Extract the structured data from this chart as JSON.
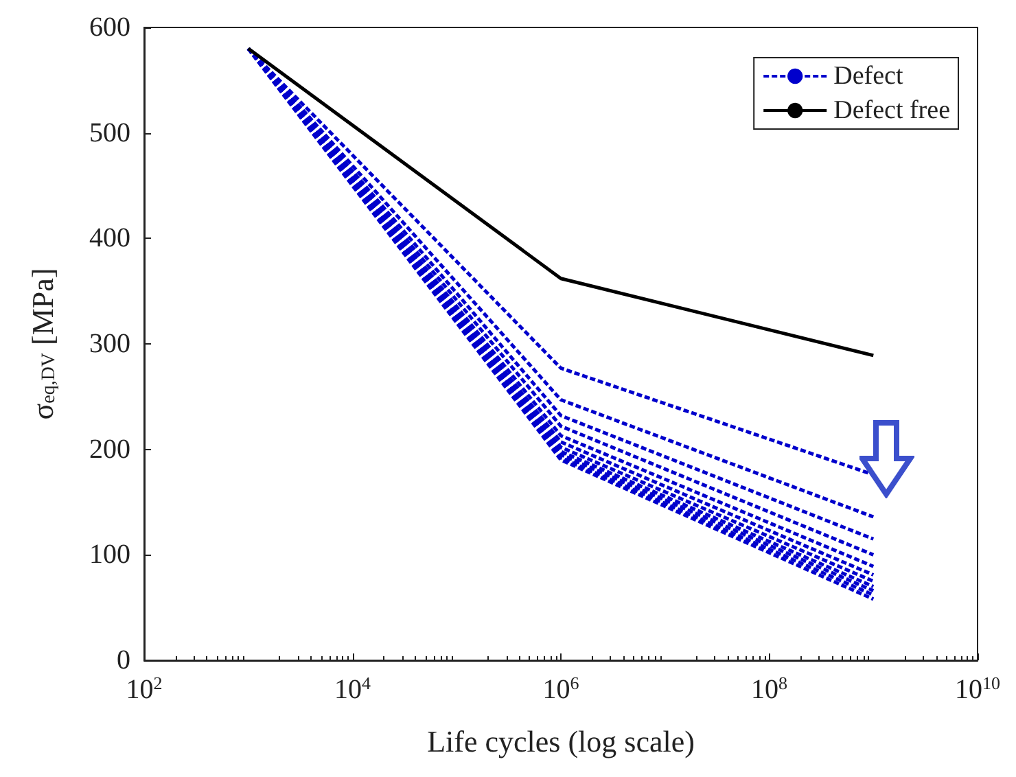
{
  "chart_data": {
    "type": "line",
    "xlabel": "Life cycles (log scale)",
    "ylabel": "σ$_{eq,DV}$ [MPa]",
    "x": [
      1000,
      1000000,
      1000000000
    ],
    "series": [
      {
        "name": "Defect",
        "color": "#0000cc",
        "line_style": "dashed",
        "values": [
          580,
          277,
          176
        ]
      },
      {
        "color": "#0000cc",
        "line_style": "dashed",
        "values": [
          580,
          247,
          136
        ]
      },
      {
        "color": "#0000cc",
        "line_style": "dashed",
        "values": [
          580,
          232,
          115
        ]
      },
      {
        "color": "#0000cc",
        "line_style": "dashed",
        "values": [
          580,
          222,
          100
        ]
      },
      {
        "color": "#0000cc",
        "line_style": "dashed",
        "values": [
          580,
          213,
          89
        ]
      },
      {
        "color": "#0000cc",
        "line_style": "dashed",
        "values": [
          580,
          207,
          81
        ]
      },
      {
        "color": "#0000cc",
        "line_style": "dashed",
        "values": [
          580,
          202,
          75
        ]
      },
      {
        "color": "#0000cc",
        "line_style": "dashed",
        "values": [
          580,
          198,
          70
        ]
      },
      {
        "color": "#0000cc",
        "line_style": "dashed",
        "values": [
          580,
          195,
          66
        ]
      },
      {
        "color": "#0000cc",
        "line_style": "dashed",
        "values": [
          580,
          192,
          62
        ]
      },
      {
        "color": "#0000cc",
        "line_style": "dashed",
        "values": [
          580,
          190,
          58
        ]
      },
      {
        "name": "Defect free",
        "color": "#000000",
        "line_style": "solid",
        "values": [
          580,
          362,
          289
        ]
      }
    ],
    "log": "x",
    "xlim": [
      100,
      10000000000
    ],
    "xticks": [
      {
        "value": 100,
        "label": "10$^{2}$"
      },
      {
        "value": 10000,
        "label": "10$^{4}$"
      },
      {
        "value": 1000000,
        "label": "10$^{6}$"
      },
      {
        "value": 100000000,
        "label": "10$^{8}$"
      },
      {
        "value": 10000000000,
        "label": "10$^{10}$"
      }
    ],
    "ylim": [
      0,
      600
    ],
    "yticks": [
      0,
      100,
      200,
      300,
      400,
      500,
      600
    ],
    "grid": false,
    "marker": "none",
    "legend": "top right"
  }
}
